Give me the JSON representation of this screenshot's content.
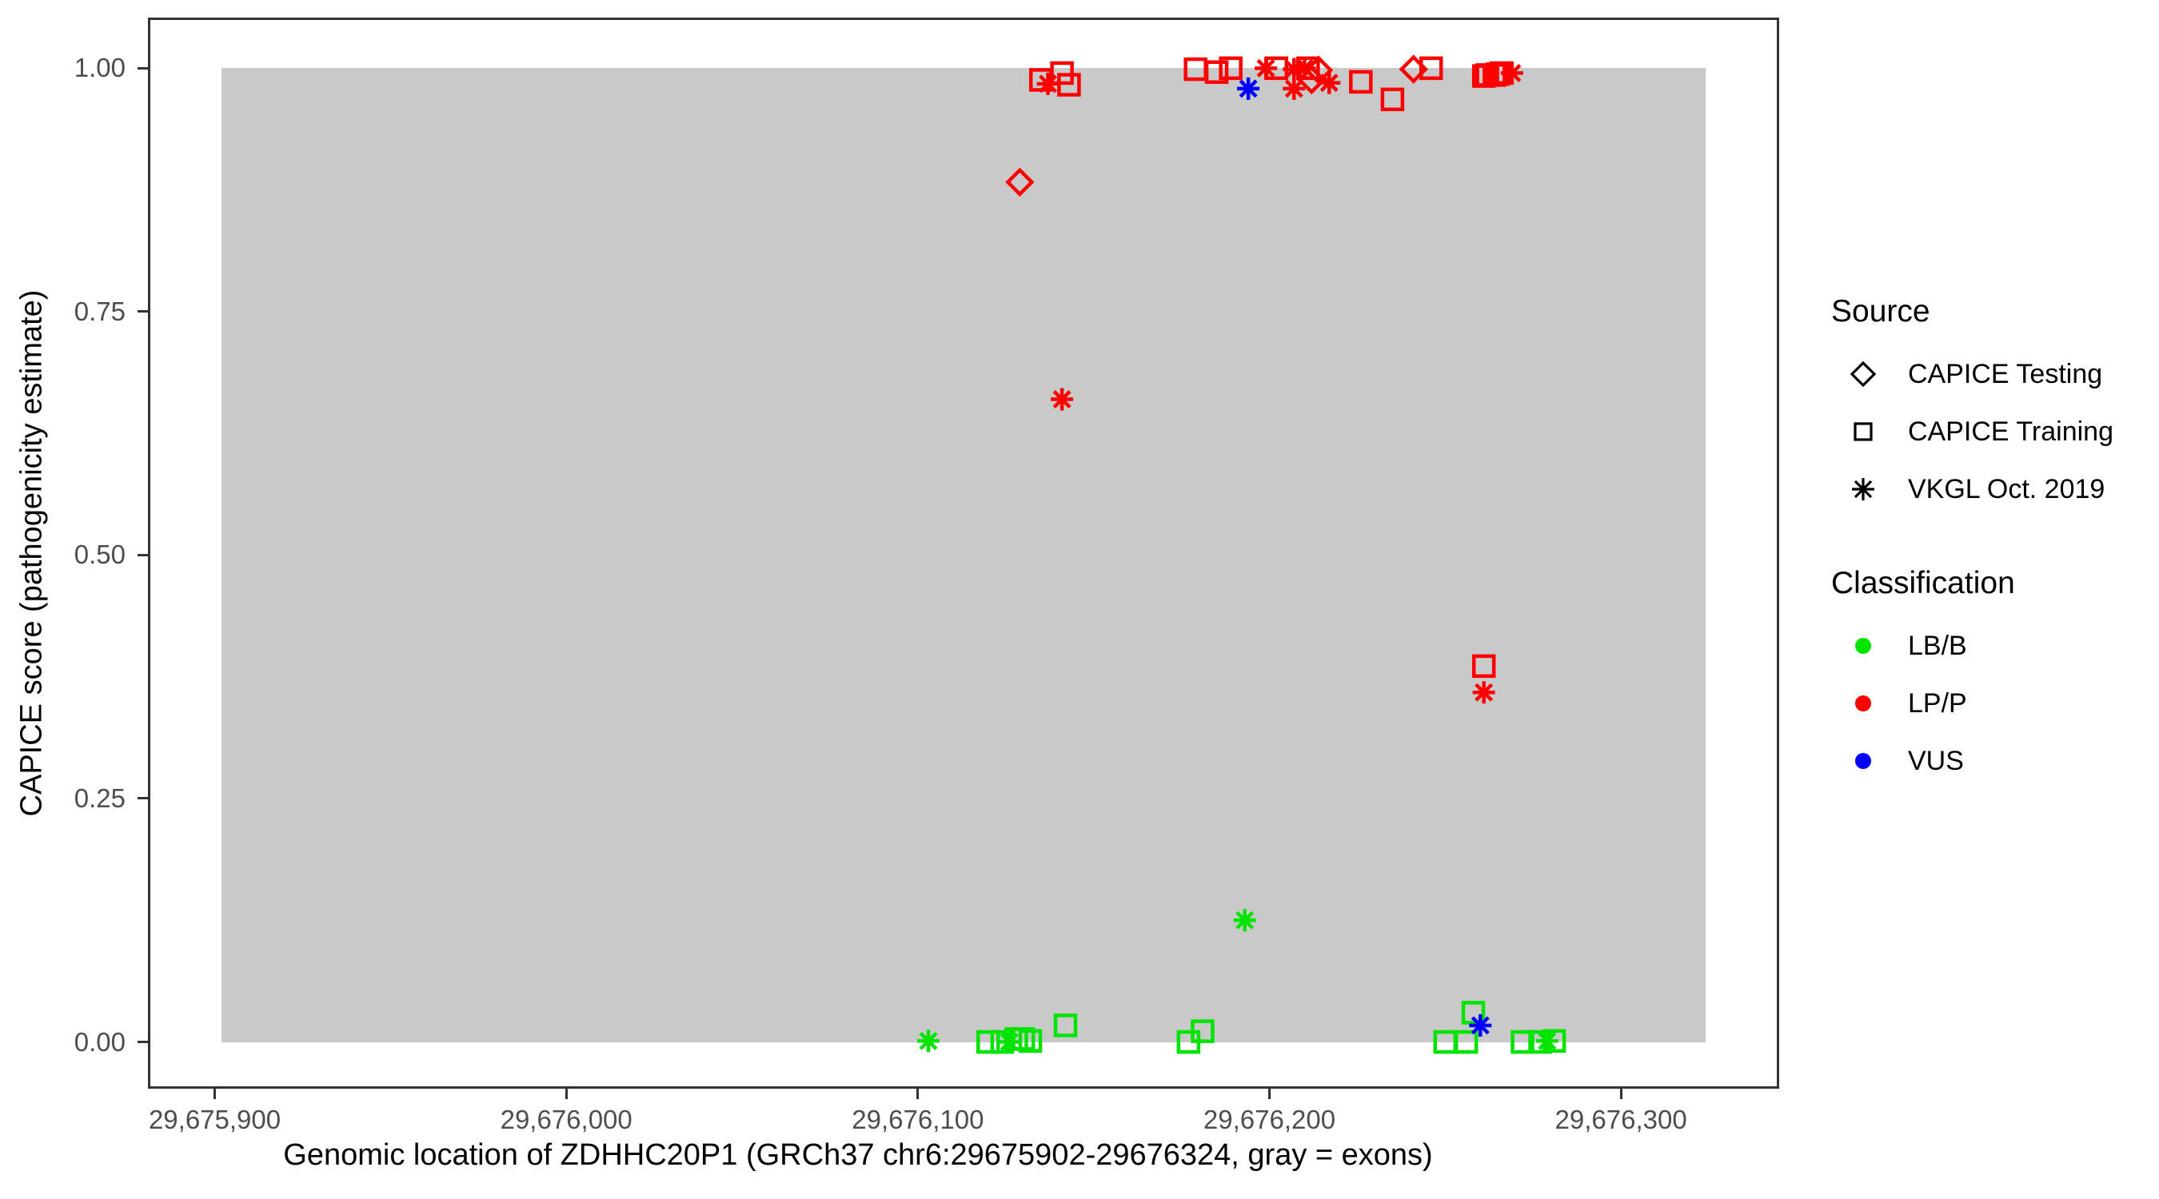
{
  "legend": {
    "source": {
      "title": "Source",
      "items": [
        {
          "label": "CAPICE Testing",
          "marker": "diamond"
        },
        {
          "label": "CAPICE Training",
          "marker": "square"
        },
        {
          "label": "VKGL Oct. 2019",
          "marker": "asterisk"
        }
      ]
    },
    "classification": {
      "title": "Classification",
      "items": [
        {
          "label": "LB/B",
          "color": "#00E400"
        },
        {
          "label": "LP/P",
          "color": "#FF0000"
        },
        {
          "label": "VUS",
          "color": "#0000FF"
        }
      ]
    }
  },
  "chart_data": {
    "type": "scatter",
    "title": "",
    "xlabel": "Genomic location of ZDHHC20P1 (GRCh37 chr6:29675902-29676324, gray = exons)",
    "ylabel": "CAPICE score (pathogenicity estimate)",
    "xlim": [
      29675881,
      29676345
    ],
    "ylim": [
      -0.048,
      1.052
    ],
    "grid": false,
    "legend_position": "right",
    "x_ticks": [
      {
        "value": 29675900,
        "label": "29,675,900"
      },
      {
        "value": 29676000,
        "label": "29,676,000"
      },
      {
        "value": 29676100,
        "label": "29,676,100"
      },
      {
        "value": 29676200,
        "label": "29,676,200"
      },
      {
        "value": 29676300,
        "label": "29,676,300"
      }
    ],
    "y_ticks": [
      {
        "value": 0.0,
        "label": "0.00"
      },
      {
        "value": 0.25,
        "label": "0.25"
      },
      {
        "value": 0.5,
        "label": "0.50"
      },
      {
        "value": 0.75,
        "label": "0.75"
      },
      {
        "value": 1.0,
        "label": "1.00"
      }
    ],
    "exon_region": {
      "start": 29675902,
      "end": 29676324,
      "ymin": 0.0,
      "ymax": 1.0,
      "color": "#C9C9C9"
    },
    "marker_by_source": {
      "CAPICE Testing": "diamond",
      "CAPICE Training": "square",
      "VKGL Oct. 2019": "asterisk"
    },
    "color_by_classification": {
      "LB/B": "#00E400",
      "LP/P": "#FF0000",
      "VUS": "#0000FF"
    },
    "points": [
      {
        "x": 29676135,
        "y": 0.988,
        "source": "CAPICE Training",
        "classification": "LP/P"
      },
      {
        "x": 29676137,
        "y": 0.984,
        "source": "VKGL Oct. 2019",
        "classification": "LP/P"
      },
      {
        "x": 29676141,
        "y": 0.995,
        "source": "CAPICE Training",
        "classification": "LP/P"
      },
      {
        "x": 29676143,
        "y": 0.983,
        "source": "CAPICE Training",
        "classification": "LP/P"
      },
      {
        "x": 29676179,
        "y": 0.999,
        "source": "CAPICE Training",
        "classification": "LP/P"
      },
      {
        "x": 29676185,
        "y": 0.996,
        "source": "CAPICE Training",
        "classification": "LP/P"
      },
      {
        "x": 29676189,
        "y": 1.0,
        "source": "CAPICE Training",
        "classification": "LP/P"
      },
      {
        "x": 29676194,
        "y": 0.979,
        "source": "VKGL Oct. 2019",
        "classification": "VUS"
      },
      {
        "x": 29676199,
        "y": 1.0,
        "source": "VKGL Oct. 2019",
        "classification": "LP/P"
      },
      {
        "x": 29676202,
        "y": 1.0,
        "source": "CAPICE Training",
        "classification": "LP/P"
      },
      {
        "x": 29676207,
        "y": 0.999,
        "source": "VKGL Oct. 2019",
        "classification": "LP/P"
      },
      {
        "x": 29676207,
        "y": 0.979,
        "source": "VKGL Oct. 2019",
        "classification": "LP/P"
      },
      {
        "x": 29676210,
        "y": 1.0,
        "source": "VKGL Oct. 2019",
        "classification": "LP/P"
      },
      {
        "x": 29676211,
        "y": 1.0,
        "source": "CAPICE Training",
        "classification": "LP/P"
      },
      {
        "x": 29676212,
        "y": 0.988,
        "source": "CAPICE Testing",
        "classification": "LP/P"
      },
      {
        "x": 29676214,
        "y": 0.998,
        "source": "CAPICE Testing",
        "classification": "LP/P"
      },
      {
        "x": 29676217,
        "y": 0.985,
        "source": "VKGL Oct. 2019",
        "classification": "LP/P"
      },
      {
        "x": 29676226,
        "y": 0.986,
        "source": "CAPICE Training",
        "classification": "LP/P"
      },
      {
        "x": 29676235,
        "y": 0.968,
        "source": "CAPICE Training",
        "classification": "LP/P"
      },
      {
        "x": 29676241,
        "y": 0.999,
        "source": "CAPICE Testing",
        "classification": "LP/P"
      },
      {
        "x": 29676246,
        "y": 1.0,
        "source": "CAPICE Training",
        "classification": "LP/P"
      },
      {
        "x": 29676261,
        "y": 0.992,
        "source": "CAPICE Training",
        "classification": "LP/P"
      },
      {
        "x": 29676262,
        "y": 0.993,
        "source": "CAPICE Training",
        "classification": "LP/P"
      },
      {
        "x": 29676264,
        "y": 0.993,
        "source": "CAPICE Training",
        "classification": "LP/P"
      },
      {
        "x": 29676265,
        "y": 0.994,
        "source": "CAPICE Training",
        "classification": "LP/P"
      },
      {
        "x": 29676266,
        "y": 0.995,
        "source": "CAPICE Training",
        "classification": "LP/P"
      },
      {
        "x": 29676269,
        "y": 0.995,
        "source": "VKGL Oct. 2019",
        "classification": "LP/P"
      },
      {
        "x": 29676129,
        "y": 0.883,
        "source": "CAPICE Testing",
        "classification": "LP/P"
      },
      {
        "x": 29676141,
        "y": 0.66,
        "source": "VKGL Oct. 2019",
        "classification": "LP/P"
      },
      {
        "x": 29676261,
        "y": 0.386,
        "source": "CAPICE Training",
        "classification": "LP/P"
      },
      {
        "x": 29676261,
        "y": 0.359,
        "source": "VKGL Oct. 2019",
        "classification": "LP/P"
      },
      {
        "x": 29676193,
        "y": 0.125,
        "source": "VKGL Oct. 2019",
        "classification": "LB/B"
      },
      {
        "x": 29676103,
        "y": 0.001,
        "source": "VKGL Oct. 2019",
        "classification": "LB/B"
      },
      {
        "x": 29676120,
        "y": 0.0,
        "source": "CAPICE Training",
        "classification": "LB/B"
      },
      {
        "x": 29676124,
        "y": 0.0,
        "source": "CAPICE Training",
        "classification": "LB/B"
      },
      {
        "x": 29676126,
        "y": 0.0,
        "source": "VKGL Oct. 2019",
        "classification": "LB/B"
      },
      {
        "x": 29676128,
        "y": 0.003,
        "source": "CAPICE Training",
        "classification": "LB/B"
      },
      {
        "x": 29676130,
        "y": 0.003,
        "source": "CAPICE Training",
        "classification": "LB/B"
      },
      {
        "x": 29676132,
        "y": 0.001,
        "source": "CAPICE Training",
        "classification": "LB/B"
      },
      {
        "x": 29676142,
        "y": 0.017,
        "source": "CAPICE Training",
        "classification": "LB/B"
      },
      {
        "x": 29676177,
        "y": 0.0,
        "source": "CAPICE Training",
        "classification": "LB/B"
      },
      {
        "x": 29676181,
        "y": 0.011,
        "source": "CAPICE Training",
        "classification": "LB/B"
      },
      {
        "x": 29676250,
        "y": 0.0,
        "source": "CAPICE Training",
        "classification": "LB/B"
      },
      {
        "x": 29676256,
        "y": 0.0,
        "source": "CAPICE Training",
        "classification": "LB/B"
      },
      {
        "x": 29676258,
        "y": 0.03,
        "source": "CAPICE Training",
        "classification": "LB/B"
      },
      {
        "x": 29676260,
        "y": 0.017,
        "source": "VKGL Oct. 2019",
        "classification": "VUS"
      },
      {
        "x": 29676272,
        "y": 0.0,
        "source": "CAPICE Training",
        "classification": "LB/B"
      },
      {
        "x": 29676277,
        "y": 0.0,
        "source": "CAPICE Training",
        "classification": "LB/B"
      },
      {
        "x": 29676279,
        "y": 0.001,
        "source": "VKGL Oct. 2019",
        "classification": "LB/B"
      },
      {
        "x": 29676281,
        "y": 0.001,
        "source": "CAPICE Training",
        "classification": "LB/B"
      }
    ]
  }
}
